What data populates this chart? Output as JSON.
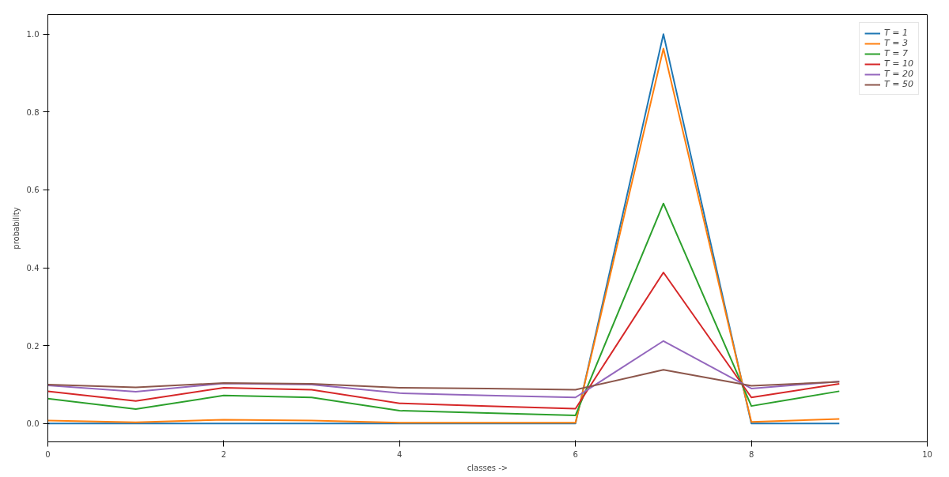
{
  "chart_data": {
    "type": "line",
    "xlabel": "classes ->",
    "ylabel": "probability",
    "x": [
      0,
      1,
      2,
      3,
      4,
      5,
      6,
      7,
      8,
      9
    ],
    "xlim": [
      0,
      10
    ],
    "xticks": [
      0,
      2,
      4,
      6,
      8,
      10
    ],
    "ylim": [
      -0.047,
      1.05
    ],
    "yticks": [
      {
        "value": 0,
        "label": "0.0"
      },
      0.2,
      0.4,
      0.6,
      0.8,
      {
        "value": 1,
        "label": "1.0"
      }
    ],
    "grid": false,
    "legend": "top right",
    "marker": "none",
    "line_style": "solid",
    "series": [
      {
        "name": "T = 1",
        "color": "#1f77b4",
        "values": [
          0,
          0,
          0,
          0,
          0,
          0,
          0,
          1.0,
          0,
          0
        ]
      },
      {
        "name": "T = 3",
        "color": "#ff7f0e",
        "values": [
          0.008,
          0.003,
          0.01,
          0.008,
          0.002,
          0.002,
          0.002,
          0.963,
          0.004,
          0.012
        ]
      },
      {
        "name": "T = 7",
        "color": "#2ca02c",
        "values": [
          0.064,
          0.037,
          0.072,
          0.067,
          0.033,
          0.027,
          0.021,
          0.565,
          0.045,
          0.083
        ]
      },
      {
        "name": "T = 10",
        "color": "#d62728",
        "values": [
          0.083,
          0.058,
          0.092,
          0.087,
          0.052,
          0.045,
          0.038,
          0.388,
          0.067,
          0.102
        ]
      },
      {
        "name": "T = 20",
        "color": "#9467bd",
        "values": [
          0.098,
          0.082,
          0.103,
          0.1,
          0.078,
          0.072,
          0.067,
          0.212,
          0.09,
          0.108
        ]
      },
      {
        "name": "T = 50",
        "color": "#8c564b",
        "values": [
          0.1,
          0.093,
          0.104,
          0.102,
          0.092,
          0.09,
          0.087,
          0.138,
          0.097,
          0.107
        ]
      }
    ]
  }
}
